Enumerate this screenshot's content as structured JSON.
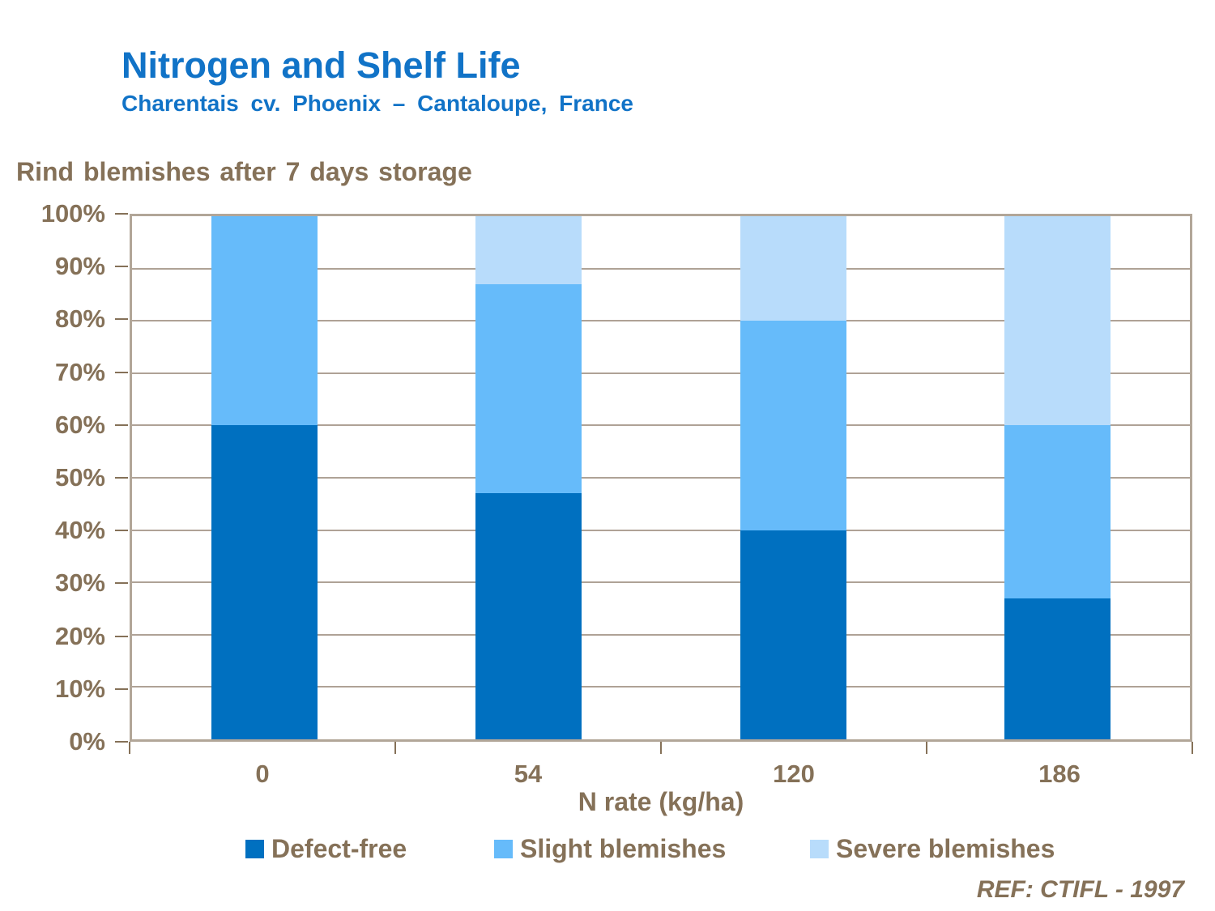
{
  "header": {
    "title": "Nitrogen and Shelf Life",
    "subtitle": "Charentais cv. Phoenix – Cantaloupe, France"
  },
  "chart": {
    "title": "Rind blemishes after 7 days storage",
    "xlabel": "N rate (kg/ha)"
  },
  "footer": {
    "ref": "REF: CTIFL - 1997"
  },
  "colors": {
    "title_blue": "#1173C7",
    "axis_brown": "#857158",
    "grid_tan": "#AFA296",
    "border_tan": "#B2A698"
  },
  "chart_data": {
    "type": "bar",
    "stacked": true,
    "title": "Rind blemishes after 7 days storage",
    "xlabel": "N rate (kg/ha)",
    "ylabel": "",
    "categories": [
      "0",
      "54",
      "120",
      "186"
    ],
    "series": [
      {
        "name": "Defect-free",
        "color": "#0070C0",
        "values": [
          60,
          47,
          40,
          27
        ]
      },
      {
        "name": "Slight blemishes",
        "color": "#66BBFA",
        "values": [
          40,
          40,
          40,
          33
        ]
      },
      {
        "name": "Severe blemishes",
        "color": "#B8DCFB",
        "values": [
          0,
          13,
          20,
          40
        ]
      }
    ],
    "ylim": [
      0,
      100
    ],
    "yticks": [
      "0%",
      "10%",
      "20%",
      "30%",
      "40%",
      "50%",
      "60%",
      "70%",
      "80%",
      "90%",
      "100%"
    ],
    "grid": true,
    "legend_position": "bottom"
  }
}
